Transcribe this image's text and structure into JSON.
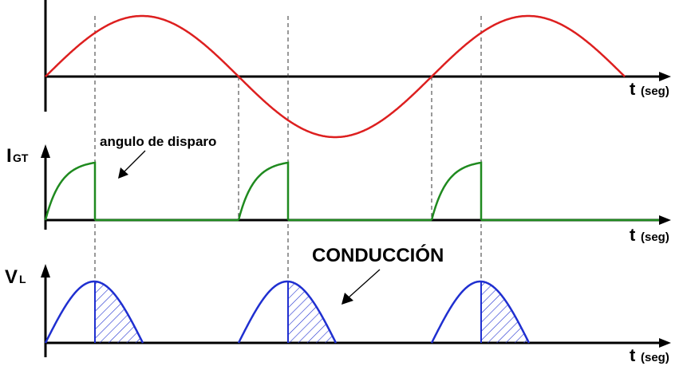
{
  "axis_labels": {
    "top": {
      "t": "t",
      "unit": "(seg)"
    },
    "middle": {
      "main": "I",
      "sub": "GT",
      "t": "t",
      "unit": "(seg)"
    },
    "bottom": {
      "main": "V",
      "sub": "L",
      "t": "t",
      "unit": "(seg)"
    }
  },
  "annotations": {
    "firing_angle": "angulo de disparo",
    "conduction": "CONDUCCIÓN"
  },
  "waveforms": {
    "source_voltage": {
      "shape": "sine",
      "cycles": 3,
      "color": "#dd1f1f"
    },
    "gate_current": {
      "shape": "gate-pulse",
      "pulses": 3,
      "color": "#1f8a1f"
    },
    "load_voltage": {
      "shape": "half-wave-lobes",
      "lobes": 3,
      "color": "#1f2fd0",
      "conduction_hatch": true
    }
  }
}
